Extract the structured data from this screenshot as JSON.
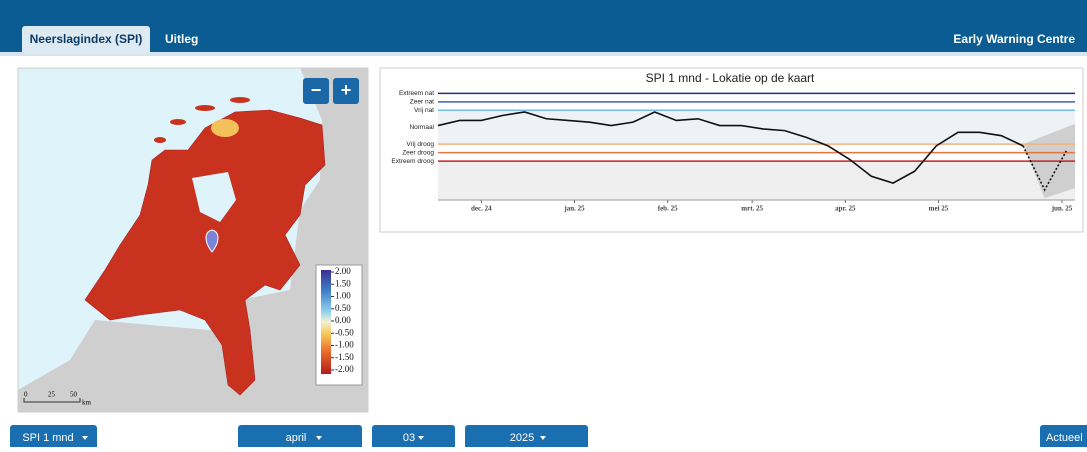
{
  "header": {
    "tabs": [
      "Neerslagindex (SPI)",
      "Uitleg"
    ],
    "brand": "Early Warning Centre"
  },
  "map": {
    "zoom_out": "−",
    "zoom_in": "+",
    "legend": {
      "ticks": [
        {
          "value": 2,
          "label": "2.00"
        },
        {
          "value": 1.5,
          "label": "1.50"
        },
        {
          "value": 1,
          "label": "1.00"
        },
        {
          "value": 0.5,
          "label": "0.50"
        },
        {
          "value": 0,
          "label": "0.00"
        },
        {
          "value": -0.5,
          "label": "-0.50"
        },
        {
          "value": -1,
          "label": "-1.00"
        },
        {
          "value": -1.5,
          "label": "-1.50"
        },
        {
          "value": -2,
          "label": "-2.00"
        }
      ]
    },
    "scale": [
      "0",
      "25",
      "50",
      "km"
    ]
  },
  "chart_data": {
    "type": "line",
    "title": "SPI 1 mnd - Lokatie op de kaart",
    "levels": [
      {
        "label": "Extreem nat",
        "value": 2,
        "color": "#2a2a86"
      },
      {
        "label": "Zeer nat",
        "value": 1.5,
        "color": "#3f5fbf"
      },
      {
        "label": "Vrij nat",
        "value": 1,
        "color": "#74bde8"
      },
      {
        "label": "Normaal",
        "value": 0,
        "color": null
      },
      {
        "label": "Vrij droog",
        "value": -1,
        "color": "#f3b27a"
      },
      {
        "label": "Zeer droog",
        "value": -1.5,
        "color": "#e8743f"
      },
      {
        "label": "Extreem droog",
        "value": -2,
        "color": "#c52222"
      }
    ],
    "xlim": [
      0,
      29.4
    ],
    "ylim": [
      -4.3,
      2.2
    ],
    "xticks": [
      {
        "value": 2,
        "label": "dec. 24"
      },
      {
        "value": 6.3,
        "label": "jan. 25"
      },
      {
        "value": 10.6,
        "label": "feb. 25"
      },
      {
        "value": 14.5,
        "label": "mrt. 25"
      },
      {
        "value": 18.8,
        "label": "apr. 25"
      },
      {
        "value": 23.1,
        "label": "mei 25"
      },
      {
        "value": 28.8,
        "label": "jun. 25"
      }
    ],
    "series": [
      {
        "color": "#111111",
        "values": [
          0.1,
          0.4,
          0.4,
          0.7,
          0.9,
          0.5,
          0.4,
          0.3,
          0.1,
          0.3,
          0.9,
          0.4,
          0.5,
          0.1,
          0.1,
          -0.1,
          -0.2,
          -0.6,
          -1.1,
          -1.9,
          -2.9,
          -3.3,
          -2.6,
          -1.1,
          -0.3,
          -0.3,
          -0.5,
          -1.1
        ]
      },
      {
        "color": "#111111",
        "dashed": true,
        "values": [
          null,
          null,
          null,
          null,
          null,
          null,
          null,
          null,
          null,
          null,
          null,
          null,
          null,
          null,
          null,
          null,
          null,
          null,
          null,
          null,
          null,
          null,
          null,
          null,
          null,
          null,
          null,
          -1.1,
          -3.7,
          -1.4
        ]
      }
    ]
  },
  "controls": [
    "SPI 1 mnd",
    "april",
    "03",
    "2025",
    "Actueel"
  ]
}
